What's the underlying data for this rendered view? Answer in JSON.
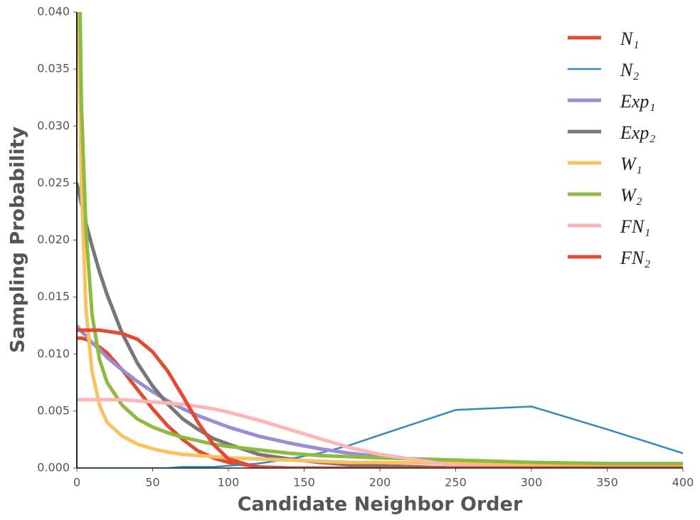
{
  "chart_data": {
    "type": "line",
    "xlabel": "Candidate Neighbor Order",
    "ylabel": "Sampling Probability",
    "x": [
      0,
      3,
      6,
      10,
      15,
      20,
      30,
      40,
      50,
      60,
      70,
      80,
      90,
      100,
      120,
      140,
      160,
      180,
      200,
      250,
      300,
      350,
      400
    ],
    "series": [
      {
        "name": "N₁",
        "color": "#e24a33",
        "linewidth": 5,
        "values": [
          0.0114,
          0.0114,
          0.0113,
          0.011,
          0.0106,
          0.0101,
          0.0086,
          0.0069,
          0.0052,
          0.0037,
          0.0025,
          0.0015,
          0.0009,
          0.0005,
          0.0001,
          0,
          0,
          0,
          0,
          0,
          0,
          0,
          0
        ]
      },
      {
        "name": "N₂",
        "color": "#348abd",
        "linewidth": 2.5,
        "values": [
          0,
          0,
          0,
          0,
          0,
          0,
          0,
          0,
          0,
          0,
          0.0001,
          0.0001,
          0.0001,
          0.0002,
          0.0004,
          0.0008,
          0.0013,
          0.002,
          0.0029,
          0.0051,
          0.0054,
          0.0034,
          0.0013
        ]
      },
      {
        "name": "Exp₁",
        "color": "#988ed5",
        "linewidth": 5,
        "values": [
          0.0125,
          0.012,
          0.0116,
          0.011,
          0.0104,
          0.0097,
          0.0086,
          0.0076,
          0.0067,
          0.0059,
          0.0052,
          0.0046,
          0.0041,
          0.0036,
          0.0028,
          0.0022,
          0.0017,
          0.0013,
          0.001,
          0.0005,
          0.0003,
          0.0002,
          0.0001
        ]
      },
      {
        "name": "Exp₂",
        "color": "#777777",
        "linewidth": 5,
        "values": [
          0.025,
          0.0232,
          0.0215,
          0.0195,
          0.0172,
          0.0152,
          0.0118,
          0.0092,
          0.0072,
          0.0056,
          0.0043,
          0.0034,
          0.0026,
          0.0021,
          0.0012,
          0.0008,
          0.0005,
          0.0003,
          0.0002,
          0,
          0,
          0,
          0
        ]
      },
      {
        "name": "W₁",
        "color": "#fbc15e",
        "linewidth": 5,
        "values": [
          0.05,
          0.025,
          0.014,
          0.0085,
          0.0055,
          0.004,
          0.0028,
          0.0021,
          0.0017,
          0.0014,
          0.0012,
          0.0011,
          0.001,
          0.0009,
          0.0008,
          0.0007,
          0.0006,
          0.0005,
          0.0005,
          0.0004,
          0.0003,
          0.0003,
          0.0003
        ]
      },
      {
        "name": "W₂",
        "color": "#8eba42",
        "linewidth": 5,
        "values": [
          0.06,
          0.032,
          0.021,
          0.0135,
          0.0095,
          0.0075,
          0.0055,
          0.0043,
          0.0036,
          0.0031,
          0.0027,
          0.0024,
          0.0021,
          0.0019,
          0.0016,
          0.0013,
          0.0011,
          0.001,
          0.0009,
          0.0007,
          0.0005,
          0.0004,
          0.0004
        ]
      },
      {
        "name": "FN₁",
        "color": "#ffb5b8",
        "linewidth": 5,
        "values": [
          0.006,
          0.006,
          0.006,
          0.006,
          0.006,
          0.006,
          0.006,
          0.0059,
          0.0058,
          0.0057,
          0.0056,
          0.0054,
          0.0052,
          0.0049,
          0.0042,
          0.0034,
          0.0026,
          0.0018,
          0.0012,
          0.0002,
          0,
          0,
          0
        ]
      },
      {
        "name": "FN₂",
        "color": "#e24a33",
        "linewidth": 5,
        "values": [
          0.0121,
          0.0121,
          0.0121,
          0.0121,
          0.0121,
          0.012,
          0.0118,
          0.0113,
          0.0102,
          0.0085,
          0.0063,
          0.004,
          0.0021,
          0.0008,
          0,
          0,
          0,
          0,
          0,
          0,
          0,
          0,
          0
        ]
      }
    ],
    "xlim": [
      0,
      400
    ],
    "xticks": [
      0,
      50,
      100,
      150,
      200,
      250,
      300,
      350,
      400
    ],
    "ylim": [
      0,
      0.04
    ],
    "yticks": [
      {
        "value": 0,
        "label": "0.000"
      },
      0.005,
      {
        "value": 0.01,
        "label": "0.010"
      },
      0.015,
      {
        "value": 0.02,
        "label": "0.020"
      },
      0.025,
      {
        "value": 0.03,
        "label": "0.030"
      },
      0.035,
      {
        "value": 0.04,
        "label": "0.040"
      }
    ],
    "legend": "upper right"
  }
}
